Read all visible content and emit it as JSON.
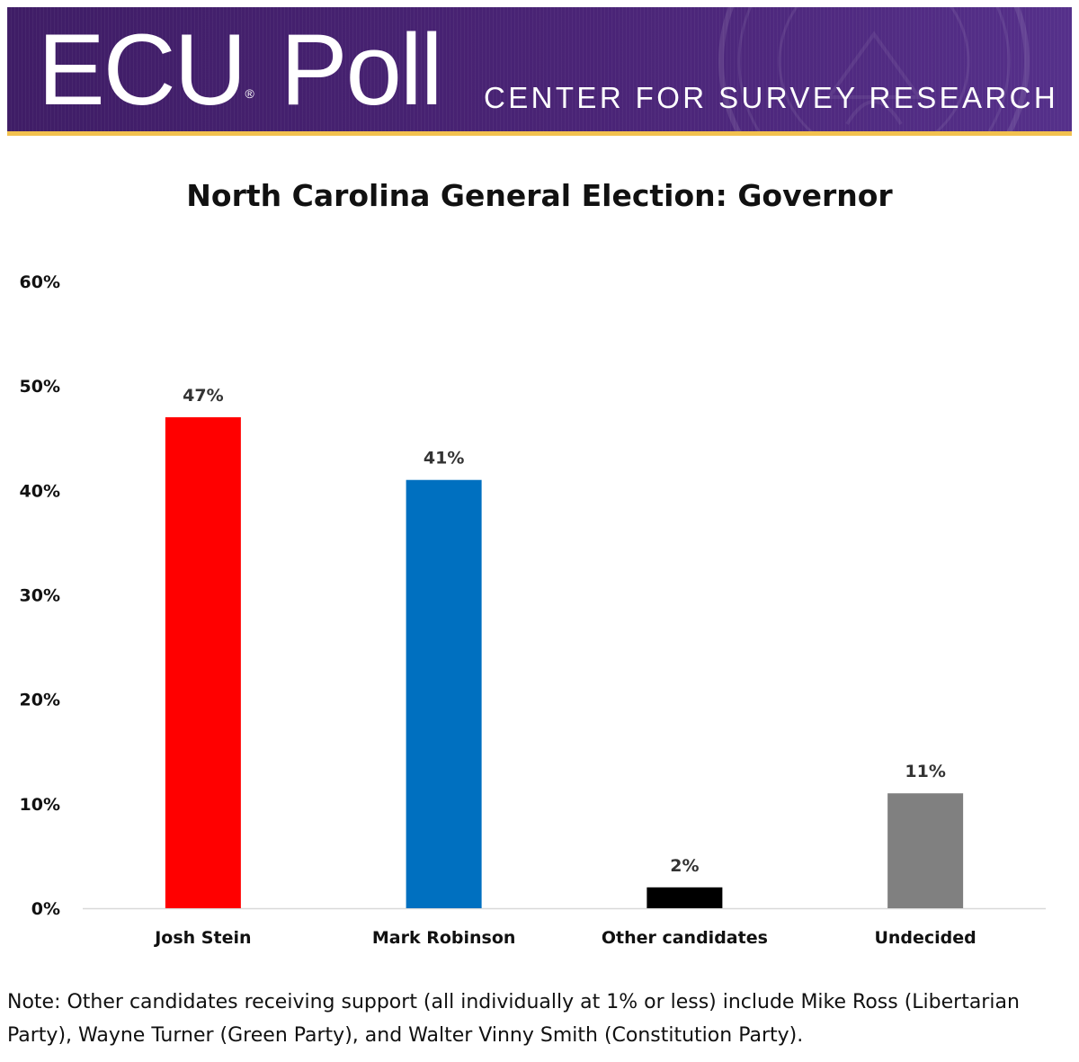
{
  "banner": {
    "logo": "ECU",
    "registered_mark": "®",
    "logo_word": "Poll",
    "subtitle": "CENTER FOR SURVEY RESEARCH",
    "colors": {
      "purple": "#4a2476",
      "gold": "#f2c14e"
    }
  },
  "chart_data": {
    "type": "bar",
    "title": "North Carolina General Election: Governor",
    "xlabel": "",
    "ylabel": "",
    "categories": [
      "Josh Stein",
      "Mark Robinson",
      "Other candidates",
      "Undecided"
    ],
    "values": [
      47,
      41,
      2,
      11
    ],
    "data_labels": [
      "47%",
      "41%",
      "2%",
      "11%"
    ],
    "bar_colors": [
      "#ff0000",
      "#0070c0",
      "#000000",
      "#808080"
    ],
    "ylim": [
      0,
      60
    ],
    "y_ticks": [
      0,
      10,
      20,
      30,
      40,
      50,
      60
    ],
    "y_tick_labels": [
      "0%",
      "10%",
      "20%",
      "30%",
      "40%",
      "50%",
      "60%"
    ],
    "grid": false,
    "legend": "none"
  },
  "note": "Note: Other candidates receiving support (all individually at 1% or less) include Mike Ross (Libertarian Party), Wayne Turner (Green Party), and Walter Vinny Smith (Constitution Party)."
}
